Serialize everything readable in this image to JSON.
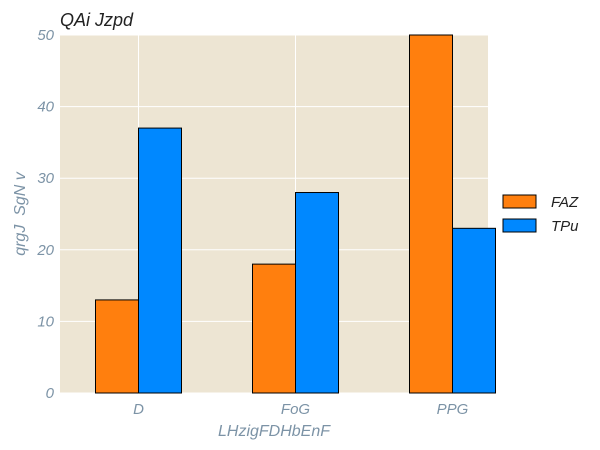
{
  "chart_data": {
    "type": "bar",
    "title": "QAi Jzpd",
    "xlabel": "LHzigFDHbEnF",
    "ylabel": "qrgJ  SgN v",
    "categories": [
      "D",
      "FoG",
      "PPG"
    ],
    "series": [
      {
        "name": "FAZ",
        "values": [
          13,
          18,
          50
        ],
        "color": "#ff7f0e"
      },
      {
        "name": "TPu",
        "values": [
          37,
          28,
          23
        ],
        "color": "#0088ff"
      }
    ],
    "ylim": [
      0,
      50
    ],
    "yticks": [
      0,
      10,
      20,
      30,
      40,
      50
    ],
    "grid": true,
    "legend": "right",
    "plot_background": "#ede5d3",
    "grid_color": "#ffffff",
    "label_color": "#7c93a6"
  }
}
